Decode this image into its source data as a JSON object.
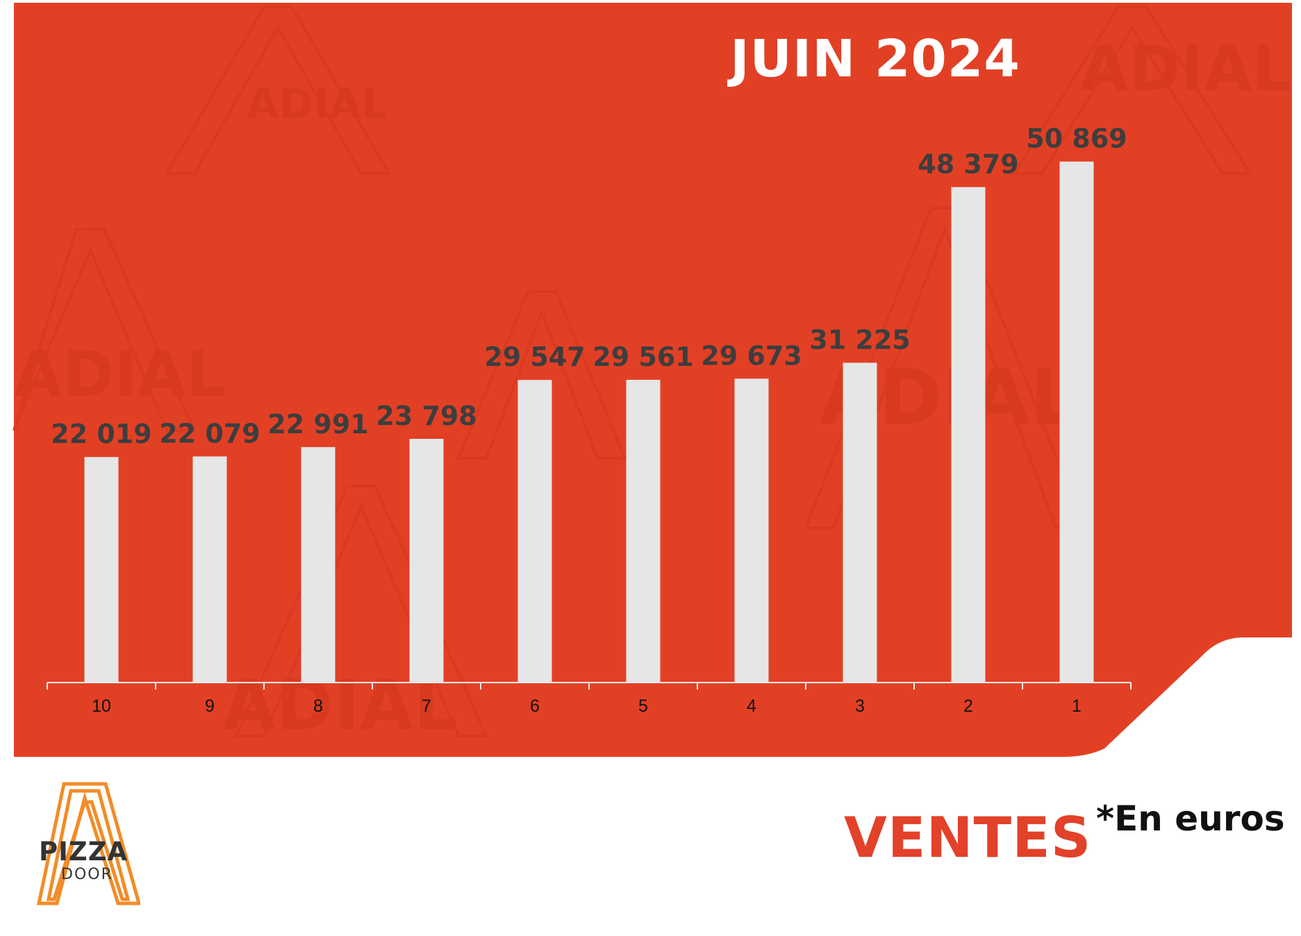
{
  "title": "JUIN 2024",
  "footer": {
    "label": "VENTES",
    "unit": "*En euros"
  },
  "watermark": {
    "text": "ADIAL"
  },
  "logo": {
    "line1": "PIZZA",
    "line2": "DOOR"
  },
  "colors": {
    "background": "#e24025",
    "bars": "#e6e6e6",
    "labels": "#3d3d3d",
    "accent": "#e2412a",
    "logo": "#f28c28"
  },
  "chart_data": {
    "type": "bar",
    "title": "JUIN 2024",
    "categories": [
      "10",
      "9",
      "8",
      "7",
      "6",
      "5",
      "4",
      "3",
      "2",
      "1"
    ],
    "values": [
      22019,
      22079,
      22991,
      23798,
      29547,
      29561,
      29673,
      31225,
      48379,
      50869
    ],
    "value_labels": [
      "22 019",
      "22 079",
      "22 991",
      "23 798",
      "29 547",
      "29 561",
      "29 673",
      "31 225",
      "48 379",
      "50 869"
    ],
    "ylim": [
      0,
      60000
    ],
    "grid": false,
    "legend": "none"
  }
}
